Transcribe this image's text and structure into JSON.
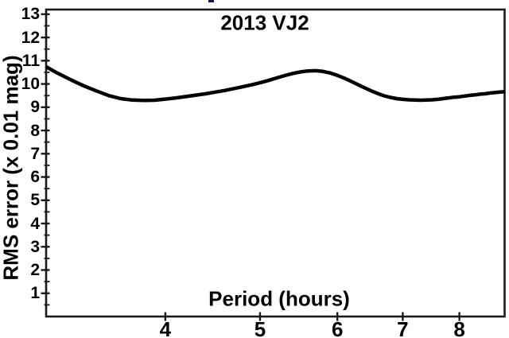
{
  "chart_data": {
    "type": "line",
    "title": "2013 VJ2",
    "xlabel": "Period (hours)",
    "ylabel": "RMS error (x 0.01 mag)",
    "x_scale": "log",
    "xlim": [
      3.02,
      8.9
    ],
    "ylim": [
      0,
      13.2
    ],
    "x_ticks": [
      4,
      5,
      6,
      7,
      8
    ],
    "y_ticks": [
      1,
      2,
      3,
      4,
      5,
      6,
      7,
      8,
      9,
      10,
      11,
      12,
      13
    ],
    "y_minor_ticks": [
      0.5,
      1.5,
      2.5,
      3.5,
      4.5,
      5.5,
      6.5,
      7.5,
      8.5,
      9.5,
      10.5,
      11.5,
      12.5
    ],
    "grid": false,
    "legend": false,
    "line_color": "#000000",
    "frame_color": "#1a1a1a",
    "background_color": "#ffffff",
    "series": [
      {
        "name": "RMS error",
        "x": [
          3.02,
          3.1,
          3.2,
          3.3,
          3.4,
          3.5,
          3.6,
          3.7,
          3.8,
          3.9,
          4.0,
          4.1,
          4.2,
          4.3,
          4.4,
          4.5,
          4.6,
          4.7,
          4.8,
          4.9,
          5.0,
          5.1,
          5.2,
          5.3,
          5.4,
          5.5,
          5.6,
          5.7,
          5.8,
          5.9,
          6.0,
          6.1,
          6.2,
          6.3,
          6.4,
          6.5,
          6.6,
          6.7,
          6.8,
          6.9,
          7.0,
          7.1,
          7.2,
          7.3,
          7.4,
          7.5,
          7.6,
          7.7,
          7.8,
          7.9,
          8.0,
          8.1,
          8.2,
          8.3,
          8.4,
          8.5,
          8.6,
          8.7,
          8.8,
          8.9
        ],
        "y": [
          10.74,
          10.47,
          10.18,
          9.92,
          9.7,
          9.5,
          9.37,
          9.31,
          9.29,
          9.3,
          9.35,
          9.4,
          9.46,
          9.52,
          9.58,
          9.65,
          9.72,
          9.8,
          9.88,
          9.96,
          10.05,
          10.15,
          10.26,
          10.36,
          10.45,
          10.52,
          10.56,
          10.57,
          10.54,
          10.47,
          10.37,
          10.25,
          10.11,
          9.97,
          9.83,
          9.7,
          9.59,
          9.49,
          9.42,
          9.37,
          9.34,
          9.32,
          9.31,
          9.3,
          9.31,
          9.32,
          9.34,
          9.37,
          9.4,
          9.43,
          9.45,
          9.48,
          9.51,
          9.53,
          9.56,
          9.58,
          9.61,
          9.63,
          9.65,
          9.67
        ]
      }
    ]
  }
}
